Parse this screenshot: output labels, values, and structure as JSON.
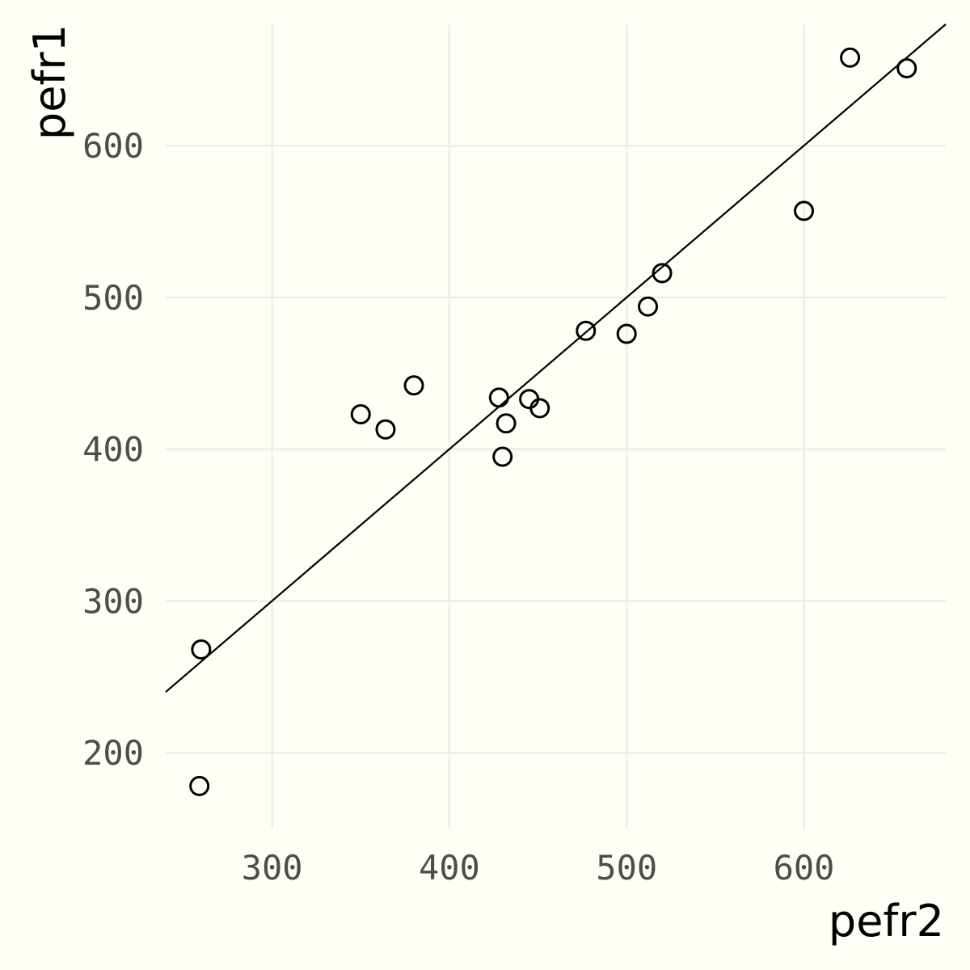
{
  "chart_data": {
    "type": "scatter",
    "title": "",
    "xlabel": "pefr2",
    "ylabel": "pefr1",
    "xlim": [
      240,
      680
    ],
    "ylim": [
      150,
      680
    ],
    "x_ticks": [
      300,
      400,
      500,
      600
    ],
    "y_ticks": [
      200,
      300,
      400,
      500,
      600
    ],
    "grid": true,
    "reference_line": {
      "type": "identity",
      "slope": 1,
      "intercept": 0
    },
    "series": [
      {
        "points": [
          {
            "x": 260,
            "y": 268
          },
          {
            "x": 259,
            "y": 178
          },
          {
            "x": 350,
            "y": 423
          },
          {
            "x": 364,
            "y": 413
          },
          {
            "x": 380,
            "y": 442
          },
          {
            "x": 428,
            "y": 434
          },
          {
            "x": 432,
            "y": 417
          },
          {
            "x": 430,
            "y": 395
          },
          {
            "x": 445,
            "y": 433
          },
          {
            "x": 451,
            "y": 427
          },
          {
            "x": 477,
            "y": 478
          },
          {
            "x": 500,
            "y": 476
          },
          {
            "x": 512,
            "y": 494
          },
          {
            "x": 520,
            "y": 516
          },
          {
            "x": 600,
            "y": 557
          },
          {
            "x": 626,
            "y": 658
          },
          {
            "x": 658,
            "y": 651
          }
        ]
      }
    ]
  }
}
